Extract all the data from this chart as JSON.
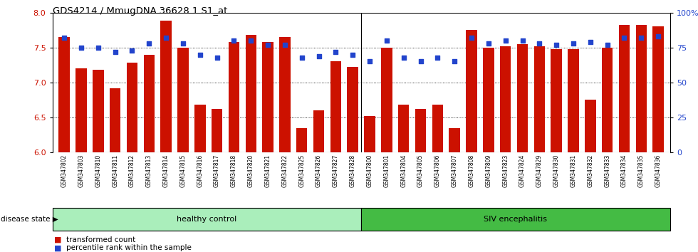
{
  "title": "GDS4214 / MmugDNA.36628.1.S1_at",
  "samples": [
    "GSM347802",
    "GSM347803",
    "GSM347810",
    "GSM347811",
    "GSM347812",
    "GSM347813",
    "GSM347814",
    "GSM347815",
    "GSM347816",
    "GSM347817",
    "GSM347818",
    "GSM347820",
    "GSM347821",
    "GSM347822",
    "GSM347825",
    "GSM347826",
    "GSM347827",
    "GSM347828",
    "GSM347800",
    "GSM347801",
    "GSM347804",
    "GSM347805",
    "GSM347806",
    "GSM347807",
    "GSM347808",
    "GSM347809",
    "GSM347823",
    "GSM347824",
    "GSM347829",
    "GSM347830",
    "GSM347831",
    "GSM347832",
    "GSM347833",
    "GSM347834",
    "GSM347835",
    "GSM347836"
  ],
  "bar_values": [
    7.65,
    7.2,
    7.18,
    6.92,
    7.28,
    7.4,
    7.88,
    7.5,
    6.68,
    6.62,
    7.58,
    7.68,
    7.58,
    7.65,
    6.35,
    6.6,
    7.3,
    7.22,
    6.52,
    7.5,
    6.68,
    6.62,
    6.68,
    6.35,
    7.75,
    7.5,
    7.52,
    7.55,
    7.52,
    7.48,
    7.48,
    6.75,
    7.5,
    7.82,
    7.82,
    7.8
  ],
  "percentile_values": [
    82,
    75,
    75,
    72,
    73,
    78,
    82,
    78,
    70,
    68,
    80,
    80,
    77,
    77,
    68,
    69,
    72,
    70,
    65,
    80,
    68,
    65,
    68,
    65,
    82,
    78,
    80,
    80,
    78,
    77,
    78,
    79,
    77,
    82,
    82,
    83
  ],
  "healthy_count": 18,
  "ylim_left": [
    6.0,
    8.0
  ],
  "ylim_right": [
    0,
    100
  ],
  "yticks_left": [
    6.0,
    6.5,
    7.0,
    7.5,
    8.0
  ],
  "yticks_right": [
    0,
    25,
    50,
    75,
    100
  ],
  "bar_color": "#CC1100",
  "dot_color": "#2244CC",
  "healthy_facecolor": "#AAEEBB",
  "siv_facecolor": "#44BB44",
  "group_label_healthy": "healthy control",
  "group_label_siv": "SIV encephalitis",
  "disease_state_label": "disease state",
  "legend_bar": "transformed count",
  "legend_dot": "percentile rank within the sample",
  "background_color": "#FFFFFF"
}
